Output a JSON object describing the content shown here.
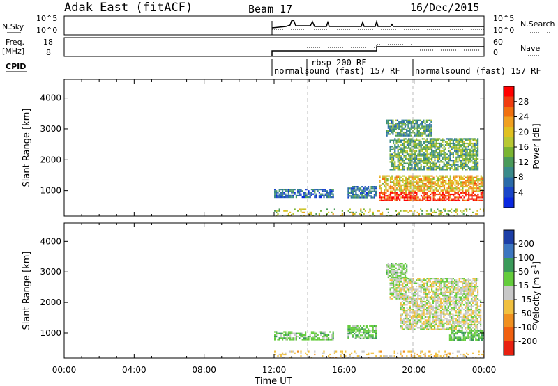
{
  "header": {
    "radar": "Adak East (fitACF)",
    "beam": "Beam 17",
    "date": "16/Dec/2015"
  },
  "top_panels": {
    "nsky": {
      "label": "N.Sky",
      "ticks": [
        "10^5",
        "10^0"
      ],
      "right_label": "N.Search",
      "right_ticks": [
        "10^5",
        "10^0"
      ]
    },
    "freq": {
      "label": "Freq.",
      "unit": "[MHz]",
      "ticks": [
        "18",
        "8"
      ],
      "right_label": "Nave",
      "right_ticks": [
        "60",
        "0"
      ]
    },
    "cpid": {
      "label": "CPID",
      "programs": [
        {
          "name": "normalsound (fast) 157 RF",
          "start": 12.0,
          "end": 20.0
        },
        {
          "name": "rbsp 200 RF",
          "start": 14.0,
          "end": 14.0
        },
        {
          "name": "normalsound (fast) 157 RF",
          "start": 20.0,
          "end": 24.0
        }
      ]
    }
  },
  "colorbars": {
    "power": {
      "label": "Power [dB]",
      "ticks": [
        "28",
        "24",
        "20",
        "16",
        "12",
        "8",
        "4"
      ],
      "colors": [
        "#ff0000",
        "#f03c10",
        "#f07010",
        "#f0a020",
        "#e0c020",
        "#b8c832",
        "#7ab432",
        "#4a9a5a",
        "#3a8a8a",
        "#2a6aa8",
        "#1a46c8",
        "#0a28e0"
      ]
    },
    "velocity": {
      "label": "Velocity [m s^-1]",
      "ticks": [
        "200",
        "100",
        "50",
        "15",
        "-15",
        "-50",
        "-100",
        "-200"
      ],
      "colors": [
        "#1c3ea6",
        "#3c76c0",
        "#3a9a5a",
        "#64cc3c",
        "#c8c8c8",
        "#f0c040",
        "#f09020",
        "#f06010",
        "#e82010"
      ]
    }
  },
  "chart_data": [
    {
      "type": "heatmap",
      "name": "power",
      "xlabel": "Time UT",
      "ylabel": "Slant Range [km]",
      "xlim": [
        0,
        24
      ],
      "ylim": [
        180,
        4600
      ],
      "x_ticks": [
        "00:00",
        "04:00",
        "08:00",
        "12:00",
        "16:00",
        "20:00",
        "00:00"
      ],
      "y_ticks": [
        1000,
        2000,
        3000,
        4000
      ],
      "colorbar": {
        "label": "Power [dB]",
        "ticks": [
          4,
          8,
          12,
          16,
          20,
          24,
          28
        ]
      },
      "regions": [
        {
          "t0": 12.0,
          "t1": 15.4,
          "r0": 780,
          "r1": 1060,
          "value": 6
        },
        {
          "t0": 16.2,
          "t1": 17.8,
          "r0": 800,
          "r1": 1150,
          "value": 7
        },
        {
          "t0": 18.0,
          "t1": 23.9,
          "r0": 700,
          "r1": 1500,
          "value": 20
        },
        {
          "t0": 18.6,
          "t1": 23.6,
          "r0": 1700,
          "r1": 2700,
          "value": 12
        },
        {
          "t0": 18.4,
          "t1": 21.0,
          "r0": 2800,
          "r1": 3300,
          "value": 10
        },
        {
          "t0": 12.0,
          "t1": 24.0,
          "r0": 180,
          "r1": 420,
          "value": 16
        }
      ]
    },
    {
      "type": "heatmap",
      "name": "velocity",
      "xlabel": "Time UT",
      "ylabel": "Slant Range [km]",
      "xlim": [
        0,
        24
      ],
      "ylim": [
        180,
        4600
      ],
      "x_ticks": [
        "00:00",
        "04:00",
        "08:00",
        "12:00",
        "16:00",
        "20:00",
        "00:00"
      ],
      "y_ticks": [
        1000,
        2000,
        3000,
        4000
      ],
      "colorbar": {
        "label": "Velocity [m s^-1]",
        "ticks": [
          -200,
          -100,
          -50,
          -15,
          15,
          50,
          100,
          200
        ]
      },
      "regions": [
        {
          "t0": 12.0,
          "t1": 15.4,
          "r0": 780,
          "r1": 1060,
          "value": 30
        },
        {
          "t0": 16.2,
          "t1": 17.8,
          "r0": 800,
          "r1": 1250,
          "value": 35
        },
        {
          "t0": 19.2,
          "t1": 23.8,
          "r0": 1100,
          "r1": 2100,
          "value": 0
        },
        {
          "t0": 18.6,
          "t1": 23.6,
          "r0": 2100,
          "r1": 2800,
          "value": 0
        },
        {
          "t0": 18.4,
          "t1": 19.6,
          "r0": 2800,
          "r1": 3300,
          "value": 25
        },
        {
          "t0": 22.0,
          "t1": 24.0,
          "r0": 750,
          "r1": 1100,
          "value": 40
        },
        {
          "t0": 12.0,
          "t1": 24.0,
          "r0": 180,
          "r1": 420,
          "value": -30
        }
      ]
    }
  ]
}
